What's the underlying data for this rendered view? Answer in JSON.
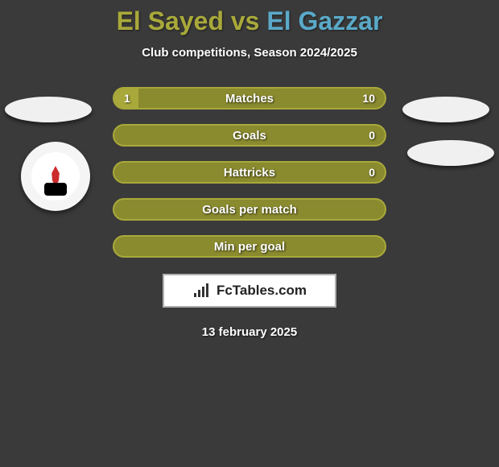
{
  "background_color": "#3a3a3a",
  "title": {
    "player1": "El Sayed",
    "vs": "vs",
    "player2": "El Gazzar",
    "player1_color": "#a9a93b",
    "vs_color": "#a9a93b",
    "player2_color": "#5aa9c9",
    "fontsize": 32
  },
  "subtitle": {
    "text": "Club competitions, Season 2024/2025",
    "color": "#ffffff",
    "fontsize": 15
  },
  "bars": {
    "track_width": 340,
    "track_height": 28,
    "border_radius": 14,
    "left_color": "#a9a93b",
    "right_color": "#8a8a2f",
    "label_color": "#ffffff",
    "label_fontsize": 15,
    "value_fontsize": 14,
    "items": [
      {
        "label": "Matches",
        "left_val": "1",
        "right_val": "10",
        "left_pct": 9,
        "show_vals": true
      },
      {
        "label": "Goals",
        "left_val": "",
        "right_val": "0",
        "left_pct": 0,
        "show_vals": true
      },
      {
        "label": "Hattricks",
        "left_val": "",
        "right_val": "0",
        "left_pct": 0,
        "show_vals": true
      },
      {
        "label": "Goals per match",
        "left_val": "",
        "right_val": "",
        "left_pct": 0,
        "show_vals": false
      },
      {
        "label": "Min per goal",
        "left_val": "",
        "right_val": "",
        "left_pct": 0,
        "show_vals": false
      }
    ]
  },
  "decor_ovals": {
    "color": "#f0f0f0",
    "width": 108,
    "height": 32
  },
  "team_badge": {
    "outer_color": "#f5f5f5",
    "inner_color": "#ffffff",
    "flame_color": "#cc2b2b",
    "figure_color": "#000000"
  },
  "brand": {
    "text": "FcTables.com",
    "text_color": "#222222",
    "box_bg": "#ffffff",
    "box_border": "#b0b0b0",
    "bar_color": "#333333"
  },
  "date": {
    "text": "13 february 2025",
    "color": "#ffffff",
    "fontsize": 15
  }
}
